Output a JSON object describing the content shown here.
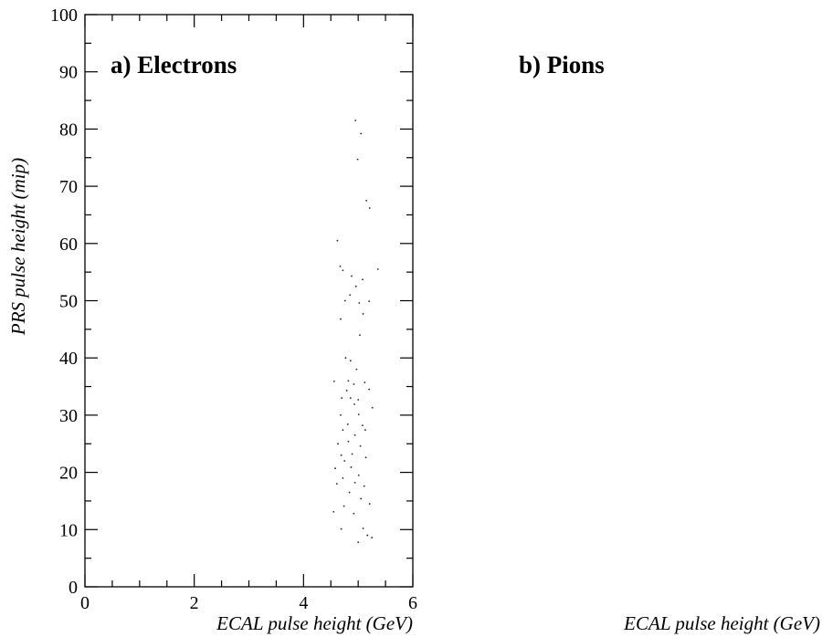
{
  "chart_data": [
    {
      "type": "scatter",
      "panel_label": "a) Electrons",
      "xlabel": "ECAL pulse height (GeV)",
      "ylabel": "PRS pulse height (mip)",
      "xlim": [
        0,
        6
      ],
      "ylim": [
        0,
        100
      ],
      "x_ticks": [
        "0",
        "2",
        "4",
        "6"
      ],
      "y_ticks": [
        "0",
        "10",
        "20",
        "30",
        "40",
        "50",
        "60",
        "70",
        "80",
        "90",
        "100"
      ],
      "points": [
        [
          4.95,
          81.5
        ],
        [
          5.05,
          79.2
        ],
        [
          4.99,
          74.7
        ],
        [
          5.15,
          67.5
        ],
        [
          5.21,
          66.2
        ],
        [
          4.62,
          60.5
        ],
        [
          4.67,
          56.0
        ],
        [
          4.72,
          55.3
        ],
        [
          5.36,
          55.5
        ],
        [
          4.88,
          54.3
        ],
        [
          5.08,
          53.7
        ],
        [
          4.96,
          52.5
        ],
        [
          4.85,
          51.0
        ],
        [
          4.76,
          50.0
        ],
        [
          5.02,
          49.6
        ],
        [
          5.2,
          49.9
        ],
        [
          5.09,
          47.7
        ],
        [
          4.68,
          46.8
        ],
        [
          5.03,
          44.0
        ],
        [
          4.77,
          40.0
        ],
        [
          4.86,
          39.5
        ],
        [
          4.97,
          38.0
        ],
        [
          4.56,
          35.9
        ],
        [
          4.82,
          36.0
        ],
        [
          4.92,
          35.4
        ],
        [
          5.12,
          35.7
        ],
        [
          4.79,
          34.3
        ],
        [
          5.2,
          34.5
        ],
        [
          4.7,
          33.0
        ],
        [
          4.86,
          33.0
        ],
        [
          5.0,
          32.7
        ],
        [
          4.93,
          31.9
        ],
        [
          5.26,
          31.3
        ],
        [
          4.68,
          30.0
        ],
        [
          5.01,
          30.1
        ],
        [
          4.81,
          28.4
        ],
        [
          5.08,
          28.2
        ],
        [
          4.72,
          27.4
        ],
        [
          4.94,
          26.5
        ],
        [
          5.13,
          27.4
        ],
        [
          4.63,
          25.0
        ],
        [
          4.82,
          25.4
        ],
        [
          5.04,
          24.6
        ],
        [
          4.69,
          23.0
        ],
        [
          4.89,
          23.2
        ],
        [
          4.75,
          22.0
        ],
        [
          5.14,
          22.6
        ],
        [
          4.58,
          20.7
        ],
        [
          4.87,
          20.9
        ],
        [
          5.01,
          19.5
        ],
        [
          4.72,
          19.0
        ],
        [
          4.94,
          18.2
        ],
        [
          4.61,
          18.0
        ],
        [
          5.11,
          17.6
        ],
        [
          4.84,
          16.5
        ],
        [
          5.05,
          15.4
        ],
        [
          4.74,
          14.1
        ],
        [
          5.21,
          14.5
        ],
        [
          4.55,
          13.1
        ],
        [
          4.92,
          12.8
        ],
        [
          4.69,
          10.1
        ],
        [
          5.09,
          10.2
        ],
        [
          5.17,
          9.0
        ],
        [
          5.25,
          8.6
        ],
        [
          5.0,
          7.8
        ]
      ]
    },
    {
      "type": "scatter",
      "panel_label": "b) Pions",
      "xlabel": "ECAL pulse height (GeV)",
      "points": []
    }
  ]
}
